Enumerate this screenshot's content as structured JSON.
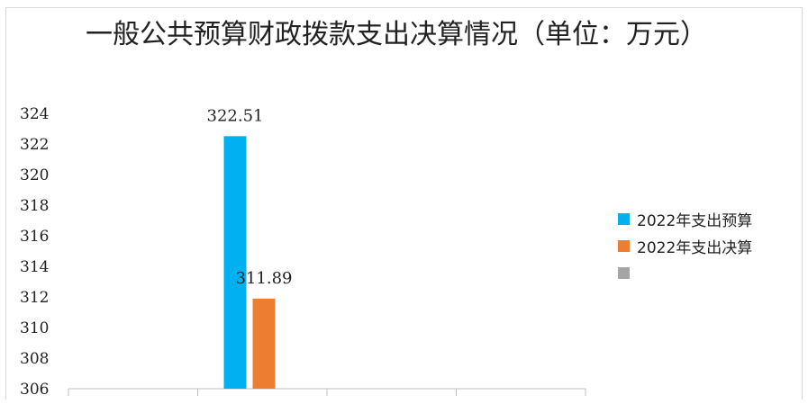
{
  "chart_data": {
    "type": "bar",
    "title": "一般公共预算财政拨款支出决算情况（单位：万元）",
    "categories": [
      "",
      "",
      "",
      ""
    ],
    "series": [
      {
        "name": "2022年支出预算",
        "color": "#00B0F0",
        "values": [
          null,
          322.51,
          null,
          null
        ]
      },
      {
        "name": "2022年支出决算",
        "color": "#ED7D31",
        "values": [
          null,
          311.89,
          null,
          null
        ]
      },
      {
        "name": "",
        "color": "#A5A5A5",
        "values": [
          null,
          null,
          null,
          null
        ]
      }
    ],
    "data_labels": [
      "322.51",
      "311.89"
    ],
    "ylim": [
      306,
      324
    ],
    "yticks": [
      "306",
      "308",
      "310",
      "312",
      "314",
      "316",
      "318",
      "320",
      "322",
      "324"
    ],
    "grid": false,
    "legend_position": "right"
  }
}
